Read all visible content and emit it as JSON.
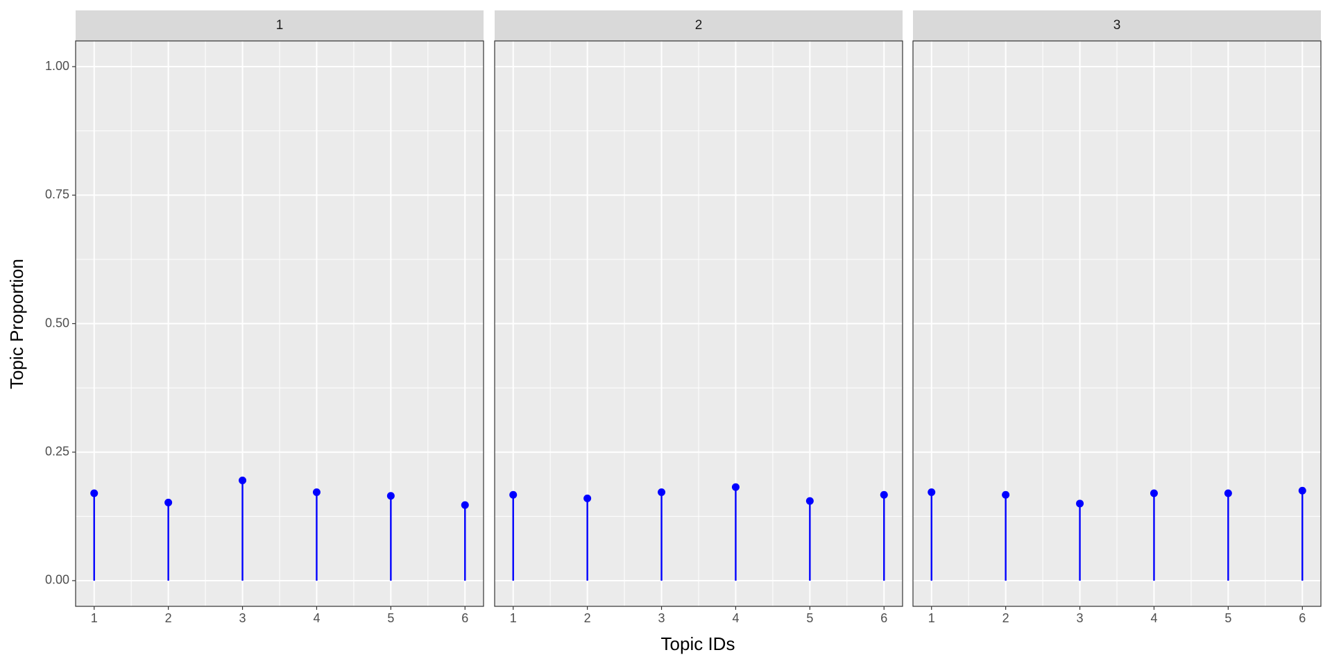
{
  "chart_data": {
    "type": "lollipop",
    "xlabel": "Topic IDs",
    "ylabel": "Topic Proportion",
    "color": "#0000ff",
    "grid": true,
    "xlim": [
      0.75,
      6.25
    ],
    "xticks": [
      1,
      2,
      3,
      4,
      5,
      6
    ],
    "ylim": [
      -0.05,
      1.05
    ],
    "yticks": [
      {
        "value": 0,
        "label": "0.00"
      },
      {
        "value": 0.25,
        "label": "0.25"
      },
      {
        "value": 0.5,
        "label": "0.50"
      },
      {
        "value": 0.75,
        "label": "0.75"
      },
      {
        "value": 1,
        "label": "1.00"
      }
    ],
    "facets": [
      {
        "title": "1",
        "x": [
          1,
          2,
          3,
          4,
          5,
          6
        ],
        "values": [
          0.17,
          0.152,
          0.195,
          0.172,
          0.165,
          0.147
        ]
      },
      {
        "title": "2",
        "x": [
          1,
          2,
          3,
          4,
          5,
          6
        ],
        "values": [
          0.167,
          0.16,
          0.172,
          0.182,
          0.155,
          0.167
        ]
      },
      {
        "title": "3",
        "x": [
          1,
          2,
          3,
          4,
          5,
          6
        ],
        "values": [
          0.172,
          0.167,
          0.15,
          0.17,
          0.17,
          0.175
        ]
      }
    ]
  }
}
